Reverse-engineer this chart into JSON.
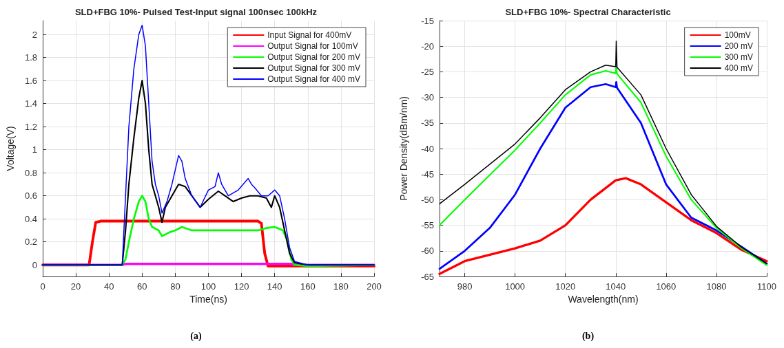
{
  "chart_data": [
    {
      "type": "line",
      "title": "SLD+FBG 10%- Pulsed Test-Input signal 100nsec 100kHz",
      "xlabel": "Time(ns)",
      "ylabel": "Voltage(V)",
      "annotations": [
        "(a)"
      ],
      "xlim": [
        0,
        200
      ],
      "xticks": [
        0,
        20,
        40,
        60,
        80,
        100,
        120,
        140,
        160,
        180,
        200
      ],
      "ylim": [
        -0.1,
        2.12
      ],
      "yticks": [
        0,
        0.2,
        0.4,
        0.6,
        0.8,
        1,
        1.2,
        1.4,
        1.6,
        1.8,
        2
      ],
      "grid": true,
      "legend": "top right",
      "line_style": "solid",
      "series": [
        {
          "name": "Input Signal for 400mV",
          "color": "#ff0000",
          "x": [
            0,
            28,
            30,
            32,
            35,
            60,
            90,
            130,
            132,
            134,
            136,
            140,
            200
          ],
          "values": [
            0,
            0,
            0.2,
            0.37,
            0.38,
            0.38,
            0.38,
            0.38,
            0.36,
            0.1,
            -0.01,
            -0.01,
            -0.01
          ]
        },
        {
          "name": "Output Signal for 100mV",
          "color": "#ff00ff",
          "x": [
            0,
            48,
            50,
            100,
            150,
            152,
            200
          ],
          "values": [
            0,
            0,
            0.01,
            0.01,
            0.01,
            0,
            0
          ]
        },
        {
          "name": "Output Signal for 200 mV",
          "color": "#00ff00",
          "x": [
            0,
            48,
            50,
            52,
            55,
            58,
            60,
            62,
            64,
            66,
            70,
            72,
            76,
            80,
            84,
            90,
            100,
            110,
            120,
            130,
            135,
            140,
            145,
            148,
            150,
            152,
            160,
            200
          ],
          "values": [
            0,
            0,
            0.05,
            0.2,
            0.4,
            0.55,
            0.6,
            0.55,
            0.4,
            0.33,
            0.3,
            0.25,
            0.28,
            0.3,
            0.33,
            0.3,
            0.3,
            0.3,
            0.3,
            0.3,
            0.32,
            0.33,
            0.3,
            0.2,
            0.05,
            0,
            -0.01,
            0
          ]
        },
        {
          "name": "Output Signal for 300 mV",
          "color": "#000000",
          "x": [
            0,
            48,
            50,
            52,
            55,
            58,
            60,
            62,
            64,
            66,
            68,
            70,
            72,
            74,
            78,
            82,
            86,
            90,
            95,
            100,
            106,
            110,
            115,
            120,
            125,
            130,
            135,
            138,
            140,
            143,
            146,
            149,
            152,
            160,
            200
          ],
          "values": [
            0,
            0,
            0.3,
            0.7,
            1.1,
            1.45,
            1.6,
            1.4,
            1,
            0.7,
            0.6,
            0.5,
            0.37,
            0.5,
            0.6,
            0.7,
            0.68,
            0.6,
            0.5,
            0.57,
            0.64,
            0.6,
            0.55,
            0.58,
            0.6,
            0.6,
            0.58,
            0.5,
            0.6,
            0.5,
            0.3,
            0.1,
            0.02,
            0,
            0
          ]
        },
        {
          "name": "Output Signal for 400 mV",
          "color": "#0000ff",
          "x": [
            0,
            48,
            50,
            52,
            55,
            58,
            60,
            62,
            64,
            66,
            68,
            70,
            72,
            75,
            78,
            82,
            84,
            86,
            90,
            95,
            100,
            104,
            106,
            108,
            112,
            118,
            124,
            126,
            128,
            132,
            136,
            140,
            143,
            146,
            149,
            152,
            160,
            200
          ],
          "values": [
            0,
            0,
            0.6,
            1.2,
            1.7,
            2,
            2.08,
            1.9,
            1.4,
            0.9,
            0.7,
            0.6,
            0.45,
            0.55,
            0.7,
            0.95,
            0.9,
            0.75,
            0.6,
            0.5,
            0.65,
            0.68,
            0.8,
            0.7,
            0.6,
            0.65,
            0.75,
            0.7,
            0.67,
            0.6,
            0.6,
            0.65,
            0.6,
            0.4,
            0.15,
            0.03,
            0,
            0
          ]
        }
      ]
    },
    {
      "type": "line",
      "title": "SLD+FBG 10%- Spectral Characteristic",
      "xlabel": "Wavelength(nm)",
      "ylabel": "Power Density(dBm/nm)",
      "annotations": [
        "(b)"
      ],
      "xlim": [
        970,
        1100
      ],
      "xticks": [
        980,
        1000,
        1020,
        1040,
        1060,
        1080,
        1100
      ],
      "ylim": [
        -65,
        -15
      ],
      "yticks": [
        -65,
        -60,
        -55,
        -50,
        -45,
        -40,
        -35,
        -30,
        -25,
        -20,
        -15
      ],
      "grid": true,
      "legend": "top right",
      "line_style": "solid",
      "series": [
        {
          "name": "100mV",
          "color": "#ff0000",
          "x": [
            970,
            980,
            1000,
            1010,
            1020,
            1030,
            1040,
            1044,
            1050,
            1060,
            1070,
            1080,
            1090,
            1100
          ],
          "values": [
            -64.5,
            -62,
            -59.5,
            -58,
            -55,
            -50,
            -46.2,
            -45.8,
            -47,
            -50.5,
            -54,
            -56.5,
            -59.8,
            -62
          ]
        },
        {
          "name": "200 mV",
          "color": "#0000ff",
          "x": [
            970,
            980,
            990,
            1000,
            1010,
            1020,
            1030,
            1036,
            1040,
            1040.2,
            1040.5,
            1050,
            1060,
            1070,
            1080,
            1090,
            1100
          ],
          "values": [
            -63.5,
            -60,
            -55.5,
            -49,
            -40,
            -32,
            -28,
            -27.4,
            -28,
            -27,
            -28.1,
            -35,
            -47,
            -53.5,
            -56,
            -59.2,
            -62.5
          ]
        },
        {
          "name": "300 mV",
          "color": "#00ff00",
          "x": [
            970,
            980,
            1000,
            1010,
            1020,
            1030,
            1036,
            1040,
            1040.2,
            1040.5,
            1050,
            1060,
            1070,
            1080,
            1090,
            1100
          ],
          "values": [
            -55,
            -50,
            -40.3,
            -35,
            -29.5,
            -25.6,
            -24.8,
            -25.3,
            -24,
            -25.4,
            -31,
            -41.5,
            -50,
            -55.5,
            -59.5,
            -62.8
          ]
        },
        {
          "name": "400 mV",
          "color": "#000000",
          "x": [
            970,
            980,
            1000,
            1010,
            1020,
            1030,
            1036,
            1040,
            1040.2,
            1040.5,
            1050,
            1060,
            1070,
            1080,
            1090,
            1100
          ],
          "values": [
            -50.8,
            -47,
            -39.1,
            -34,
            -28.5,
            -25,
            -23.7,
            -24,
            -19,
            -24.1,
            -29.5,
            -40,
            -49,
            -55.2,
            -59.3,
            -62.5
          ]
        }
      ]
    }
  ]
}
